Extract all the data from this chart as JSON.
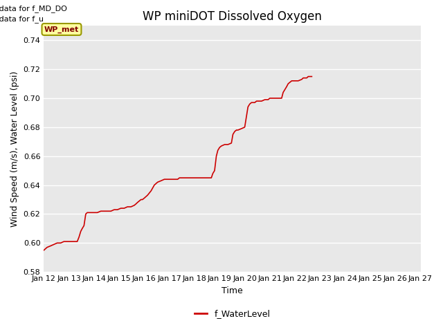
{
  "title": "WP miniDOT Dissolved Oxygen",
  "xlabel": "Time",
  "ylabel": "Wind Speed (m/s), Water Level (psi)",
  "annotations": [
    "No data for f_MD_DO",
    "No data for f_u"
  ],
  "legend_label": "f_WaterLevel",
  "legend_box_label": "WP_met",
  "line_color": "#cc0000",
  "ylim": [
    0.58,
    0.75
  ],
  "xlim": [
    0,
    15
  ],
  "x_tick_labels": [
    "Jan 12",
    "Jan 13",
    "Jan 14",
    "Jan 15",
    "Jan 16",
    "Jan 17",
    "Jan 18",
    "Jan 19",
    "Jan 20",
    "Jan 21",
    "Jan 22",
    "Jan 23",
    "Jan 24",
    "Jan 25",
    "Jan 26",
    "Jan 27"
  ],
  "background_color": "#e8e8e8",
  "fig_background": "#ffffff",
  "title_fontsize": 12,
  "axis_fontsize": 9,
  "tick_fontsize": 8,
  "annot_fontsize": 8,
  "x_data": [
    0.0,
    0.13,
    0.27,
    0.4,
    0.53,
    0.67,
    0.8,
    0.93,
    1.07,
    1.2,
    1.33,
    1.4,
    1.47,
    1.53,
    1.6,
    1.67,
    1.73,
    1.8,
    1.87,
    1.93,
    2.0,
    2.13,
    2.27,
    2.4,
    2.53,
    2.67,
    2.8,
    2.93,
    3.07,
    3.2,
    3.33,
    3.47,
    3.6,
    3.67,
    3.73,
    3.8,
    3.87,
    3.93,
    4.0,
    4.13,
    4.27,
    4.4,
    4.53,
    4.67,
    4.8,
    4.93,
    5.07,
    5.2,
    5.33,
    5.4,
    5.47,
    5.53,
    5.6,
    5.67,
    5.73,
    5.8,
    5.87,
    6.0,
    6.13,
    6.27,
    6.4,
    6.53,
    6.67,
    6.73,
    6.8,
    6.87,
    6.93,
    7.0,
    7.07,
    7.2,
    7.33,
    7.47,
    7.53,
    7.6,
    7.67,
    7.73,
    7.87,
    8.0,
    8.13,
    8.2,
    8.27,
    8.33,
    8.4,
    8.47,
    8.53,
    8.67,
    8.8,
    8.93,
    9.0,
    9.07,
    9.2,
    9.33,
    9.47,
    9.53,
    9.6,
    9.67,
    9.73,
    9.8,
    9.87,
    10.0,
    10.13,
    10.27,
    10.33,
    10.4,
    10.47,
    10.53,
    10.6,
    10.67
  ],
  "y_data": [
    0.595,
    0.597,
    0.598,
    0.599,
    0.6,
    0.6,
    0.601,
    0.601,
    0.601,
    0.601,
    0.601,
    0.604,
    0.608,
    0.61,
    0.612,
    0.62,
    0.621,
    0.621,
    0.621,
    0.621,
    0.621,
    0.621,
    0.622,
    0.622,
    0.622,
    0.622,
    0.623,
    0.623,
    0.624,
    0.624,
    0.625,
    0.625,
    0.626,
    0.627,
    0.628,
    0.629,
    0.63,
    0.63,
    0.631,
    0.633,
    0.636,
    0.64,
    0.642,
    0.643,
    0.644,
    0.644,
    0.644,
    0.644,
    0.644,
    0.645,
    0.645,
    0.645,
    0.645,
    0.645,
    0.645,
    0.645,
    0.645,
    0.645,
    0.645,
    0.645,
    0.645,
    0.645,
    0.645,
    0.648,
    0.65,
    0.66,
    0.664,
    0.666,
    0.667,
    0.668,
    0.668,
    0.669,
    0.675,
    0.677,
    0.678,
    0.678,
    0.679,
    0.68,
    0.694,
    0.696,
    0.697,
    0.697,
    0.697,
    0.698,
    0.698,
    0.698,
    0.699,
    0.699,
    0.7,
    0.7,
    0.7,
    0.7,
    0.7,
    0.704,
    0.706,
    0.708,
    0.71,
    0.711,
    0.712,
    0.712,
    0.712,
    0.713,
    0.714,
    0.714,
    0.714,
    0.715,
    0.715,
    0.715
  ]
}
